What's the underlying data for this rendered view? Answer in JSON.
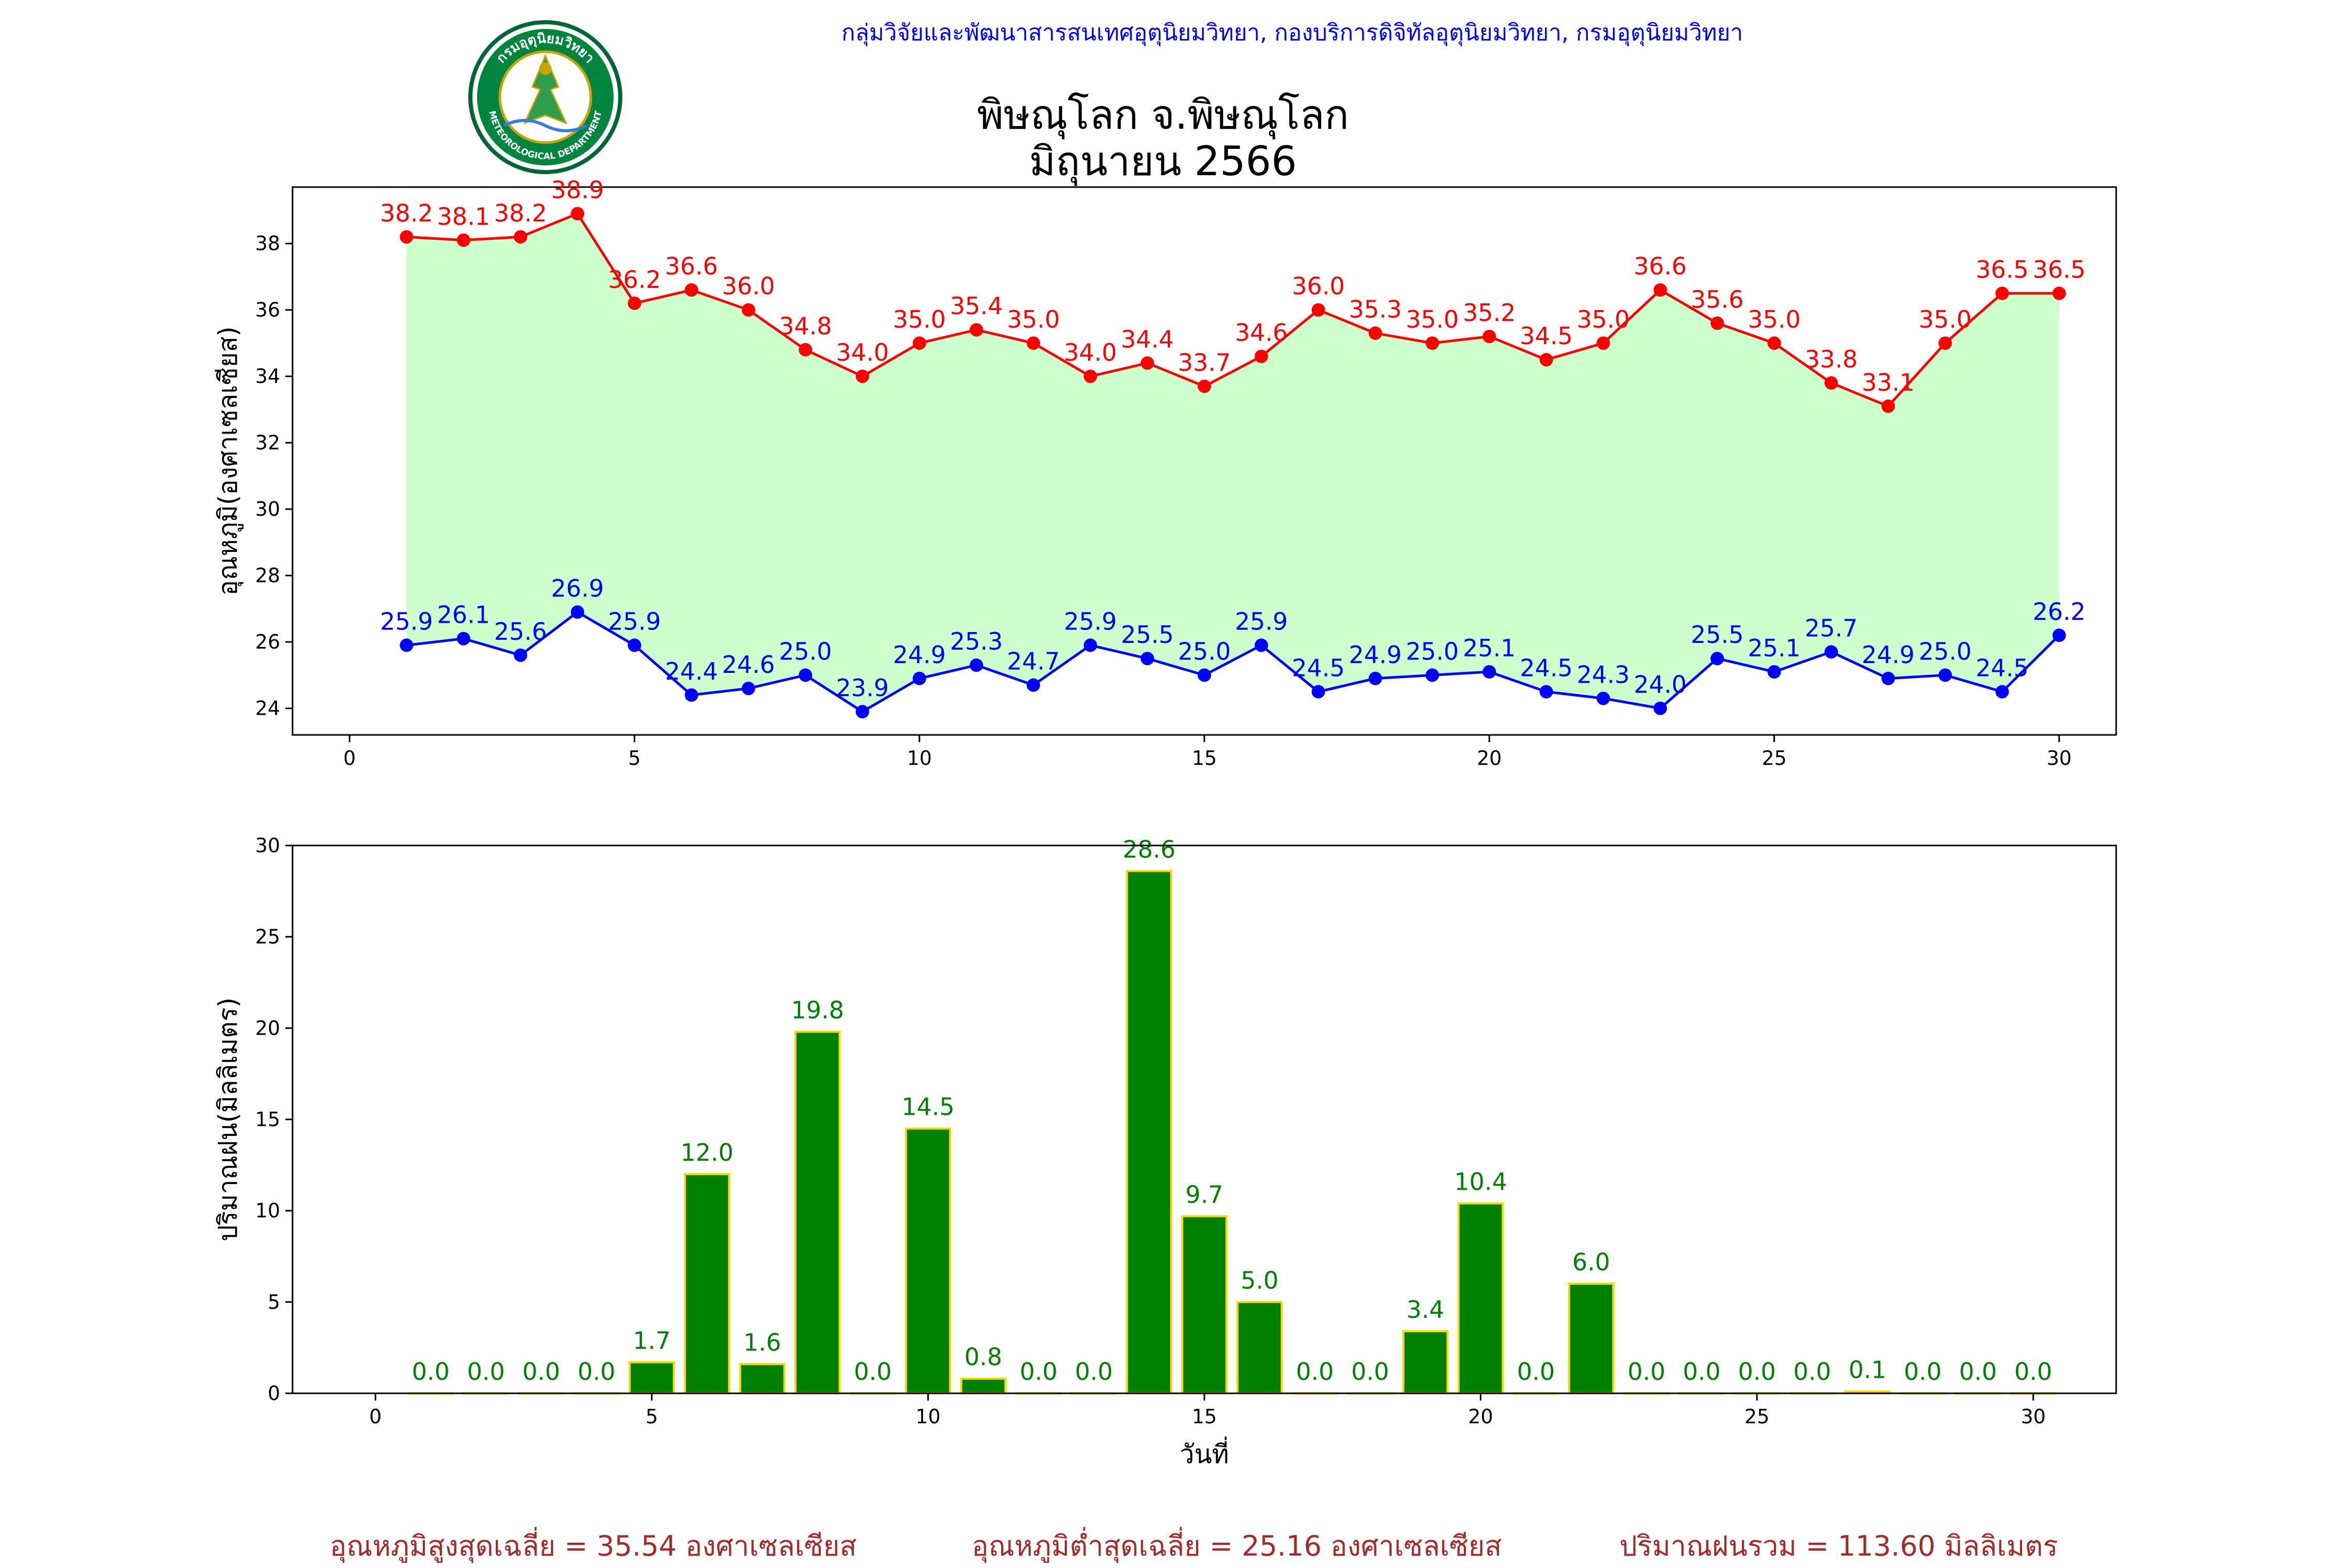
{
  "header": {
    "credit": "กลุ่มวิจัยและพัฒนาสารสนเทศอุตุนิยมวิทยา, กองบริการดิจิทัลอุตุนิยมวิทยา, กรมอุตุนิยมวิทยา",
    "station": "พิษณุโลก จ.พิษณุโลก",
    "month": "มิถุนายน 2566",
    "logo_top_text": "กรมอุตุนิยมวิทยา",
    "logo_bottom_text": "METEOROLOGICAL DEPARTMENT"
  },
  "footer": {
    "avg_max": "อุณหภูมิสูงสุดเฉลี่ย = 35.54 องศาเซลเซียส",
    "avg_min": "อุณหภูมิต่ำสุดเฉลี่ย = 25.16 องศาเซลเซียส",
    "rain_total": "ปริมาณฝนรวม = 113.60 มิลลิเมตร"
  },
  "colors": {
    "max": "#ff0000",
    "min": "#0000ff",
    "fill": "#ccffcc",
    "bar": "#008000",
    "bar_edge": "#ffd700",
    "credit": "#0000ff",
    "footer": "#a52a2a"
  },
  "chart_data": [
    {
      "type": "line",
      "ylabel": "อุณหภูมิ(องศาเซลเซียส)",
      "xlim": [
        -1,
        31
      ],
      "ylim": [
        23.2,
        39.7
      ],
      "xticks": [
        0,
        5,
        10,
        15,
        20,
        25,
        30
      ],
      "yticks": [
        24,
        26,
        28,
        30,
        32,
        34,
        36,
        38
      ],
      "fill_between": true,
      "grid": false,
      "x": [
        1,
        2,
        3,
        4,
        5,
        6,
        7,
        8,
        9,
        10,
        11,
        12,
        13,
        14,
        15,
        16,
        17,
        18,
        19,
        20,
        21,
        22,
        23,
        24,
        25,
        26,
        27,
        28,
        29,
        30
      ],
      "series": [
        {
          "key": "max",
          "values": [
            38.2,
            38.1,
            38.2,
            38.9,
            36.2,
            36.6,
            36.0,
            34.8,
            34.0,
            35.0,
            35.4,
            35.0,
            34.0,
            34.4,
            33.7,
            34.6,
            36.0,
            35.3,
            35.0,
            35.2,
            34.5,
            35.0,
            36.6,
            35.6,
            35.0,
            33.8,
            33.1,
            35.0,
            36.5,
            36.5
          ]
        },
        {
          "key": "min",
          "values": [
            25.9,
            26.1,
            25.6,
            26.9,
            25.9,
            24.4,
            24.6,
            25.0,
            23.9,
            24.9,
            25.3,
            24.7,
            25.9,
            25.5,
            25.0,
            25.9,
            24.5,
            24.9,
            25.0,
            25.1,
            24.5,
            24.3,
            24.0,
            25.5,
            25.1,
            25.7,
            24.9,
            25.0,
            24.5,
            26.2
          ]
        }
      ]
    },
    {
      "type": "bar",
      "ylabel": "ปริมาณฝน(มิลลิเมตร)",
      "xlabel": "วันที่",
      "xlim": [
        -1.5,
        31.5
      ],
      "ylim": [
        0,
        30
      ],
      "xticks": [
        0,
        5,
        10,
        15,
        20,
        25,
        30
      ],
      "yticks": [
        0,
        5,
        10,
        15,
        20,
        25,
        30
      ],
      "grid": false,
      "x": [
        1,
        2,
        3,
        4,
        5,
        6,
        7,
        8,
        9,
        10,
        11,
        12,
        13,
        14,
        15,
        16,
        17,
        18,
        19,
        20,
        21,
        22,
        23,
        24,
        25,
        26,
        27,
        28,
        29,
        30
      ],
      "values": [
        0.0,
        0.0,
        0.0,
        0.0,
        1.7,
        12.0,
        1.6,
        19.8,
        0.0,
        14.5,
        0.8,
        0.0,
        0.0,
        28.6,
        9.7,
        5.0,
        0.0,
        0.0,
        3.4,
        10.4,
        0.0,
        6.0,
        0.0,
        0.0,
        0.0,
        0.0,
        0.1,
        0.0,
        0.0,
        0.0
      ]
    }
  ]
}
